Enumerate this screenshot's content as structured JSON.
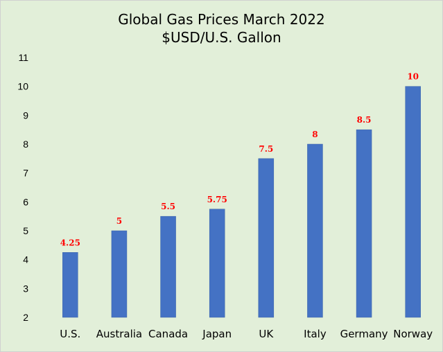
{
  "colors": {
    "background": "#e2efd9",
    "bar": "#4472c4",
    "label": "#ff0000",
    "gridline": "#b7b7b7",
    "text": "#000000"
  },
  "chart_data": {
    "type": "bar",
    "title": "Global Gas Prices March 2022",
    "subtitle": "$USD/U.S. Gallon",
    "categories": [
      "U.S.",
      "Australia",
      "Canada",
      "Japan",
      "UK",
      "Italy",
      "Germany",
      "Norway"
    ],
    "values": [
      4.25,
      5,
      5.5,
      5.75,
      7.5,
      8,
      8.5,
      10
    ],
    "data_labels": [
      "4.25",
      "5",
      "5.5",
      "5.75",
      "7.5",
      "8",
      "8.5",
      "10"
    ],
    "yticks": [
      "2",
      "3",
      "4",
      "5",
      "6",
      "7",
      "8",
      "9",
      "10",
      "11"
    ],
    "ylim": [
      2,
      11
    ],
    "xlabel": "",
    "ylabel": "",
    "grid": false,
    "legend": "none"
  }
}
